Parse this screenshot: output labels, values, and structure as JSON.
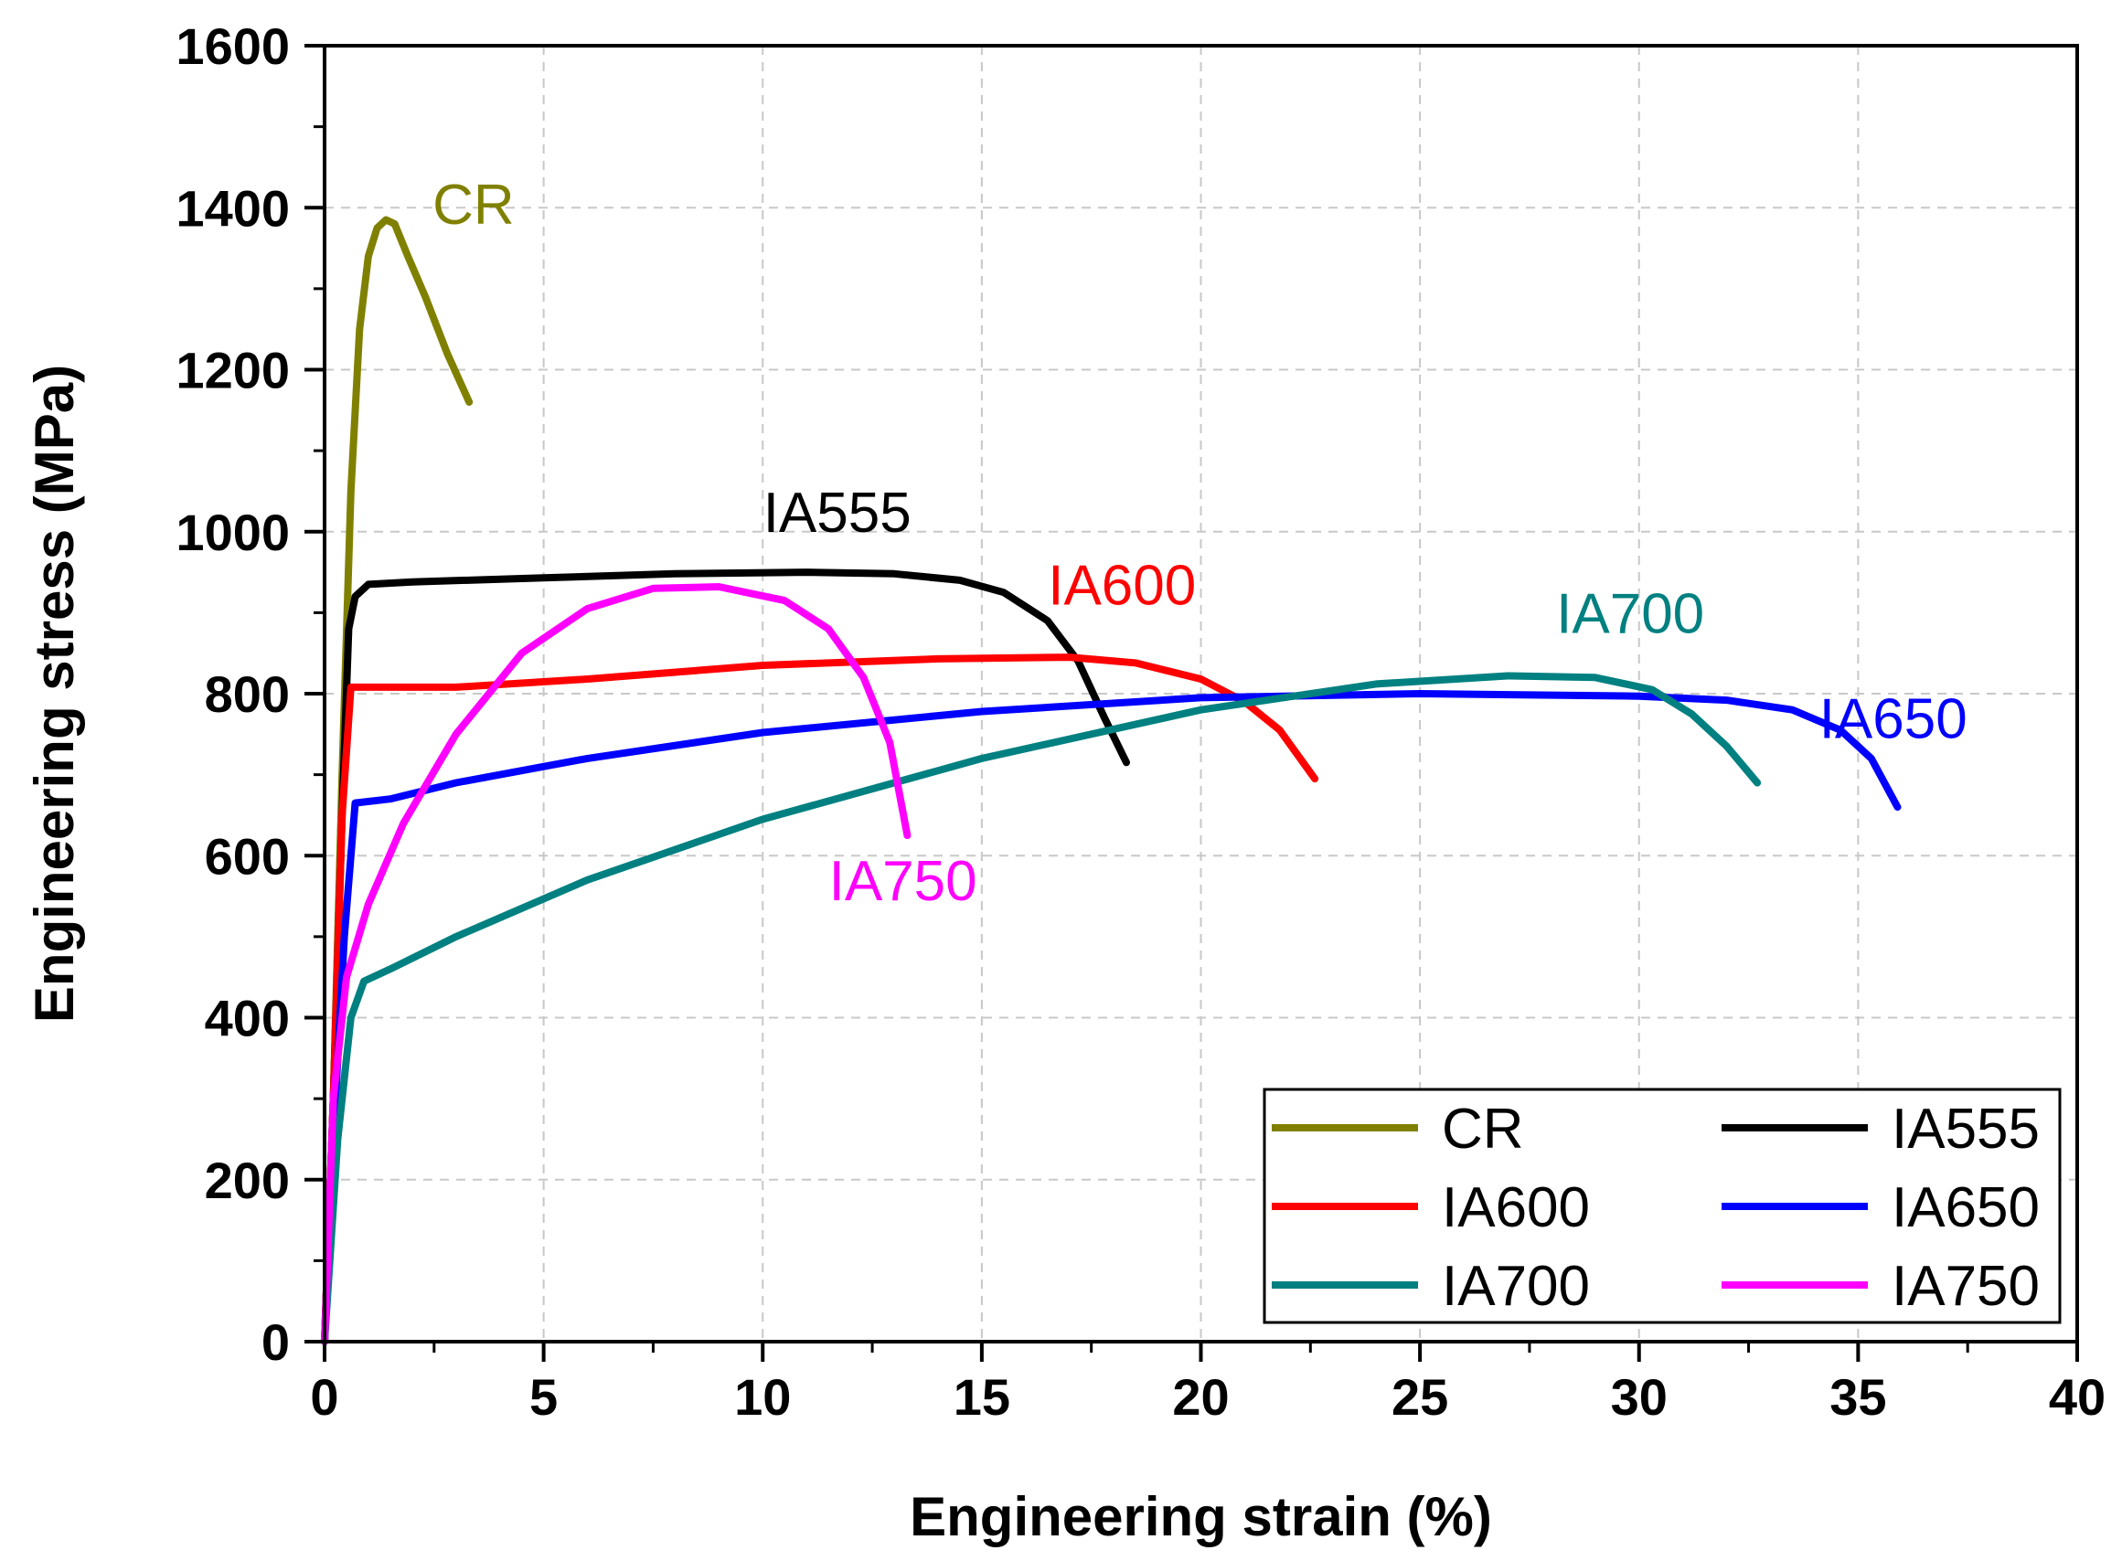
{
  "chart_data": {
    "type": "line",
    "title": "",
    "xlabel": "Engineering strain (%)",
    "ylabel": "Engineering stress (MPa)",
    "xlim": [
      0,
      40
    ],
    "ylim": [
      0,
      1600
    ],
    "x_ticks": [
      0,
      5,
      10,
      15,
      20,
      25,
      30,
      35,
      40
    ],
    "y_ticks": [
      0,
      200,
      400,
      600,
      800,
      1000,
      1200,
      1400,
      1600
    ],
    "grid": true,
    "legend": {
      "placement": "bottom-right",
      "columns": 2,
      "order": [
        "CR",
        "IA555",
        "IA600",
        "IA650",
        "IA700",
        "IA750"
      ]
    },
    "series": [
      {
        "name": "CR",
        "color": "#808000",
        "label": {
          "x": 3.4,
          "y": 1380
        },
        "points": [
          [
            0,
            0
          ],
          [
            0.2,
            300
          ],
          [
            0.4,
            700
          ],
          [
            0.6,
            1050
          ],
          [
            0.8,
            1250
          ],
          [
            1.0,
            1340
          ],
          [
            1.2,
            1375
          ],
          [
            1.4,
            1385
          ],
          [
            1.6,
            1380
          ],
          [
            1.9,
            1340
          ],
          [
            2.3,
            1290
          ],
          [
            2.8,
            1220
          ],
          [
            3.3,
            1160
          ]
        ]
      },
      {
        "name": "IA555",
        "color": "#000000",
        "label": {
          "x": 11.7,
          "y": 1000
        },
        "points": [
          [
            0,
            0
          ],
          [
            0.2,
            300
          ],
          [
            0.4,
            650
          ],
          [
            0.55,
            880
          ],
          [
            0.7,
            920
          ],
          [
            1.0,
            935
          ],
          [
            2,
            938
          ],
          [
            5,
            943
          ],
          [
            8,
            948
          ],
          [
            11,
            950
          ],
          [
            13,
            948
          ],
          [
            14.5,
            940
          ],
          [
            15.5,
            925
          ],
          [
            16.5,
            890
          ],
          [
            17.2,
            840
          ],
          [
            17.8,
            770
          ],
          [
            18.3,
            715
          ]
        ]
      },
      {
        "name": "IA600",
        "color": "#ff0000",
        "label": {
          "x": 18.2,
          "y": 910
        },
        "points": [
          [
            0,
            0
          ],
          [
            0.2,
            300
          ],
          [
            0.4,
            650
          ],
          [
            0.6,
            808
          ],
          [
            1.0,
            808
          ],
          [
            3,
            808
          ],
          [
            6,
            818
          ],
          [
            10,
            835
          ],
          [
            14,
            843
          ],
          [
            17,
            845
          ],
          [
            18.5,
            838
          ],
          [
            20,
            818
          ],
          [
            21,
            790
          ],
          [
            21.8,
            755
          ],
          [
            22.6,
            695
          ]
        ]
      },
      {
        "name": "IA650",
        "color": "#0000ff",
        "label": {
          "x": 35.8,
          "y": 745
        },
        "points": [
          [
            0,
            0
          ],
          [
            0.2,
            250
          ],
          [
            0.45,
            500
          ],
          [
            0.7,
            665
          ],
          [
            1.5,
            670
          ],
          [
            3,
            690
          ],
          [
            6,
            720
          ],
          [
            10,
            752
          ],
          [
            15,
            778
          ],
          [
            20,
            795
          ],
          [
            25,
            800
          ],
          [
            30,
            797
          ],
          [
            32,
            792
          ],
          [
            33.5,
            780
          ],
          [
            34.6,
            755
          ],
          [
            35.3,
            720
          ],
          [
            35.9,
            660
          ]
        ]
      },
      {
        "name": "IA700",
        "color": "#008080",
        "label": {
          "x": 29.8,
          "y": 875
        },
        "points": [
          [
            0,
            0
          ],
          [
            0.3,
            250
          ],
          [
            0.6,
            400
          ],
          [
            0.9,
            445
          ],
          [
            1.5,
            460
          ],
          [
            3,
            500
          ],
          [
            6,
            570
          ],
          [
            10,
            645
          ],
          [
            15,
            720
          ],
          [
            20,
            780
          ],
          [
            24,
            812
          ],
          [
            27,
            822
          ],
          [
            29,
            820
          ],
          [
            30.3,
            805
          ],
          [
            31.2,
            775
          ],
          [
            32.0,
            735
          ],
          [
            32.7,
            690
          ]
        ]
      },
      {
        "name": "IA750",
        "color": "#ff00ff",
        "label": {
          "x": 13.2,
          "y": 545
        },
        "points": [
          [
            0,
            0
          ],
          [
            0.2,
            300
          ],
          [
            0.5,
            450
          ],
          [
            1.0,
            540
          ],
          [
            1.8,
            640
          ],
          [
            3,
            750
          ],
          [
            4.5,
            850
          ],
          [
            6,
            905
          ],
          [
            7.5,
            930
          ],
          [
            9,
            932
          ],
          [
            10.5,
            915
          ],
          [
            11.5,
            880
          ],
          [
            12.3,
            820
          ],
          [
            12.9,
            740
          ],
          [
            13.3,
            625
          ]
        ]
      }
    ]
  }
}
